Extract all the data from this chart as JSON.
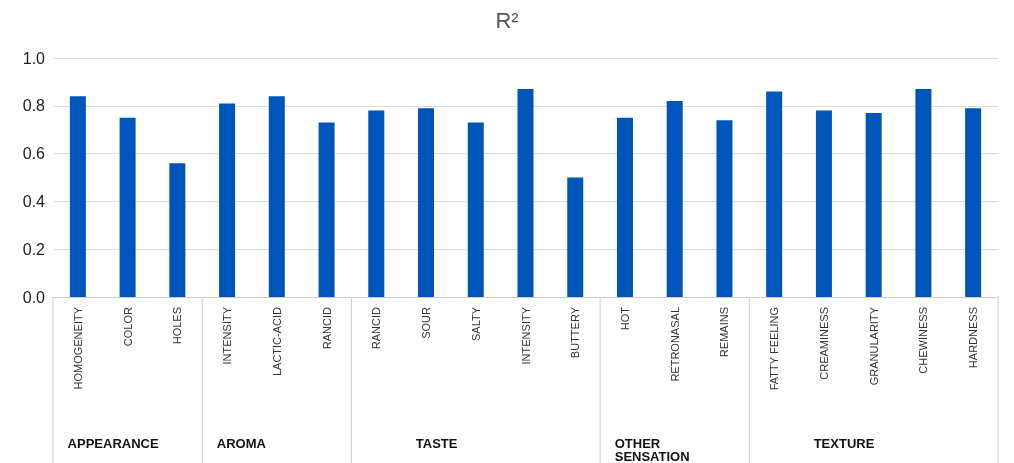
{
  "chart_data": {
    "type": "bar",
    "title": "R²",
    "categories": [
      "HOMOGENEITY",
      "COLOR",
      "HOLES",
      "INTENSITY",
      "LACTIC-ACID",
      "RANCID",
      "RANCID",
      "SOUR",
      "SALTY",
      "INTENSITY",
      "BUTTERY",
      "HOT",
      "RETRONASAL",
      "REMAINS",
      "FATTY FEELING",
      "CREAMINESS",
      "GRANULARITY",
      "CHEWINESS",
      "HARDNESS"
    ],
    "values": [
      0.84,
      0.75,
      0.56,
      0.81,
      0.84,
      0.73,
      0.78,
      0.79,
      0.73,
      0.87,
      0.5,
      0.75,
      0.82,
      0.74,
      0.86,
      0.78,
      0.77,
      0.87,
      0.79
    ],
    "color": "#0055bb",
    "ylim": [
      0,
      1
    ],
    "yticks": [
      {
        "value": 0,
        "label": "0.0"
      },
      {
        "value": 0.2,
        "label": "0.2"
      },
      {
        "value": 0.4,
        "label": "0.4"
      },
      {
        "value": 0.6,
        "label": "0.6"
      },
      {
        "value": 0.8,
        "label": "0.8"
      },
      {
        "value": 1,
        "label": "1.0"
      }
    ],
    "grid": "y",
    "annotations": [
      "APPEARANCE",
      "AROMA",
      "TASTE",
      "OTHER SENSATION",
      "TEXTURE"
    ]
  }
}
